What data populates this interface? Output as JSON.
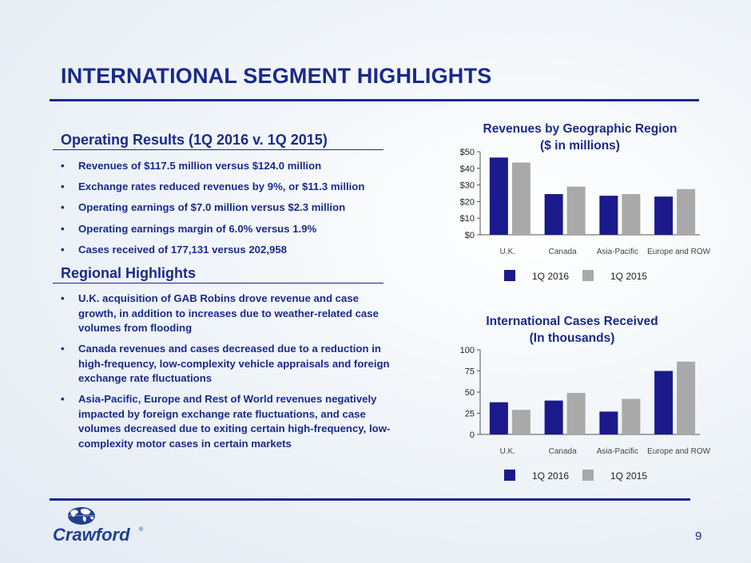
{
  "slide": {
    "title": "INTERNATIONAL SEGMENT HIGHLIGHTS",
    "page_number": "9"
  },
  "operating_results": {
    "heading": "Operating Results (1Q 2016 v. 1Q 2015)",
    "bullets": [
      "Revenues of $117.5 million versus $124.0 million",
      "Exchange rates reduced revenues by 9%, or $11.3 million",
      "Operating earnings of $7.0 million versus $2.3 million",
      "Operating earnings margin of 6.0% versus 1.9%",
      "Cases received of 177,131 versus 202,958"
    ]
  },
  "regional_highlights": {
    "heading": "Regional Highlights",
    "bullets": [
      "U.K. acquisition of GAB Robins drove revenue and case growth, in addition to increases due to weather-related case volumes from flooding",
      "Canada revenues and cases decreased due to a reduction in high-frequency, low-complexity vehicle appraisals and foreign exchange rate fluctuations",
      "Asia-Pacific, Europe and Rest of World revenues negatively impacted by foreign exchange rate fluctuations, and case volumes decreased due to exiting certain high-frequency, low-complexity motor cases in certain markets"
    ]
  },
  "logo": {
    "text": "Crawford",
    "mark": "®"
  },
  "colors": {
    "title": "#1a2a8c",
    "series_2016": "#1a1a8c",
    "series_2015": "#a9a9a9"
  },
  "chart_data": [
    {
      "type": "bar",
      "title": "Revenues by Geographic Region",
      "subtitle": "($ in millions)",
      "categories": [
        "U.K.",
        "Canada",
        "Asia-Pacific",
        "Europe and ROW"
      ],
      "series": [
        {
          "name": "1Q 2016",
          "values": [
            46.5,
            24.5,
            23.5,
            23
          ]
        },
        {
          "name": "1Q 2015",
          "values": [
            43.5,
            29,
            24.5,
            27.5
          ]
        }
      ],
      "yticks": [
        "$0",
        "$10",
        "$20",
        "$30",
        "$40",
        "$50"
      ],
      "ylim": [
        0,
        50
      ],
      "legend": "bottom",
      "grid": false
    },
    {
      "type": "bar",
      "title": "International Cases Received",
      "subtitle": "(In thousands)",
      "categories": [
        "U.K.",
        "Canada",
        "Asia-Pacific",
        "Europe and ROW"
      ],
      "series": [
        {
          "name": "1Q 2016",
          "values": [
            38,
            40,
            27,
            75
          ]
        },
        {
          "name": "1Q 2015",
          "values": [
            29,
            49,
            42,
            86
          ]
        }
      ],
      "yticks": [
        "0",
        "25",
        "50",
        "75",
        "100"
      ],
      "ylim": [
        0,
        100
      ],
      "legend": "bottom",
      "grid": false
    }
  ]
}
